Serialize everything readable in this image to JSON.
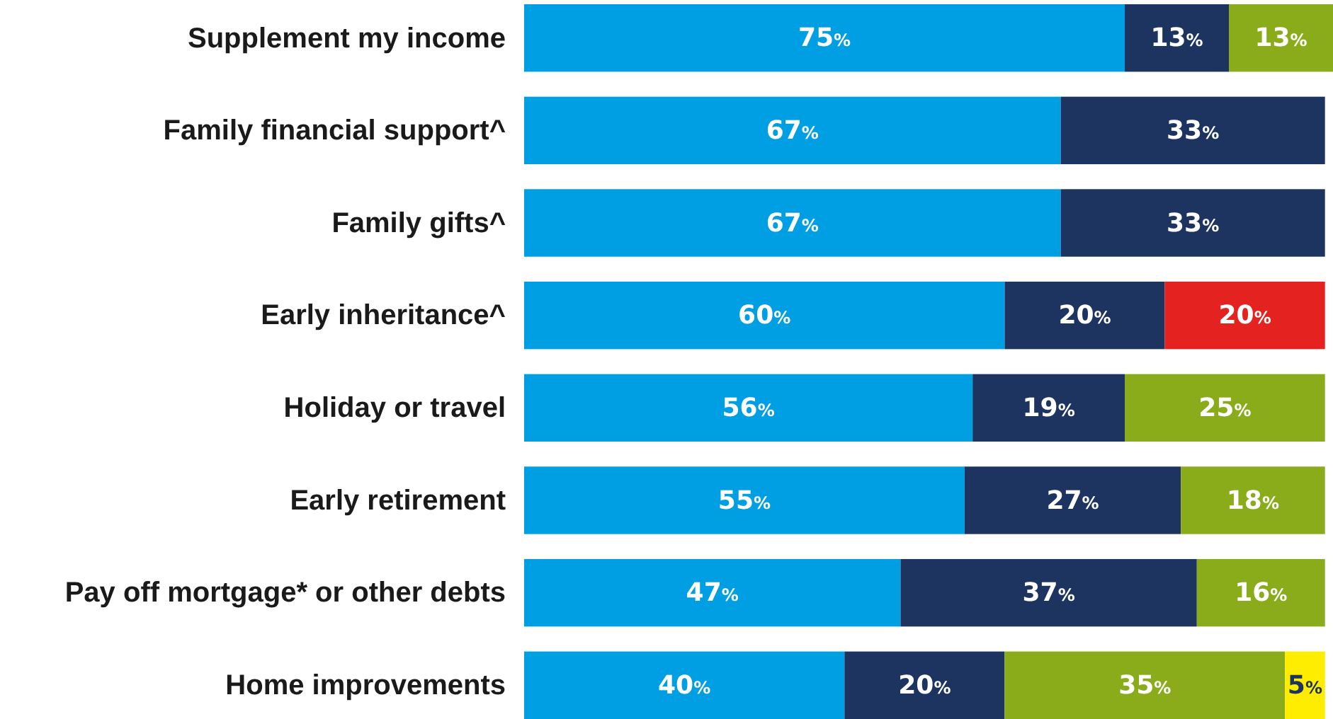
{
  "chart_data": {
    "type": "bar",
    "orientation": "horizontal",
    "stacked": true,
    "xlim": [
      0,
      101
    ],
    "tick_labels": "y",
    "categories": [
      "Supplement my income",
      "Family financial support^",
      "Family gifts^",
      "Early inheritance^",
      "Holiday or travel",
      "Early retirement",
      "Pay off mortgage* or other debts",
      "Home improvements"
    ],
    "series": [
      {
        "color": "#009fe3",
        "values": [
          75,
          67,
          67,
          60,
          56,
          55,
          47,
          40
        ],
        "value_labels": [
          "75%",
          "67%",
          "67%",
          "60%",
          "56%",
          "55%",
          "47%",
          "40%"
        ]
      },
      {
        "color": "#1d3461",
        "values": [
          13,
          33,
          33,
          20,
          19,
          27,
          37,
          20
        ],
        "value_labels": [
          "13%",
          "33%",
          "33%",
          "20%",
          "19%",
          "27%",
          "37%",
          "20%"
        ]
      },
      {
        "color": "#8aac1a",
        "values": [
          13,
          null,
          null,
          null,
          25,
          18,
          16,
          35
        ],
        "value_labels": [
          "13%",
          null,
          null,
          null,
          "25%",
          "18%",
          "16%",
          "35%"
        ]
      },
      {
        "color": "#e42320",
        "values": [
          null,
          null,
          null,
          20,
          null,
          null,
          null,
          null
        ],
        "value_labels": [
          null,
          null,
          null,
          "20%",
          null,
          null,
          null,
          null
        ]
      },
      {
        "color": "#ffed00",
        "values": [
          null,
          null,
          null,
          null,
          null,
          null,
          null,
          5
        ],
        "value_labels": [
          null,
          null,
          null,
          null,
          null,
          null,
          null,
          "5%"
        ]
      }
    ]
  }
}
